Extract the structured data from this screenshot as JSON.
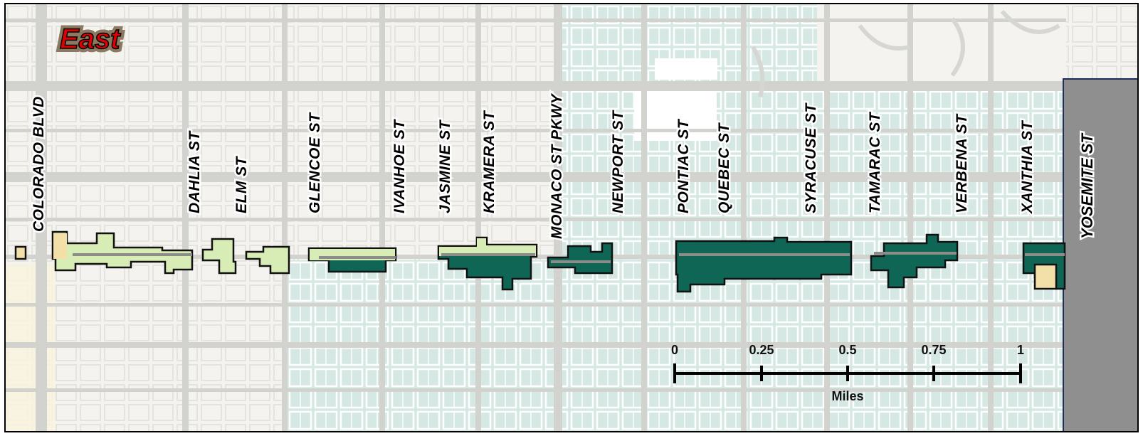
{
  "map": {
    "title": "East",
    "colors": {
      "background": "#f3f2ee",
      "teal_area": "#d5e8e4",
      "cream_area": "#faf3df",
      "road": "#d2d2cf",
      "light_green_fill": "#d8ecb6",
      "dark_green_fill": "#0f6655",
      "tan_fill": "#f3e0a8",
      "yosemite_strip": "#8f8f8f",
      "title_red": "#e00000"
    },
    "streets": [
      {
        "id": "colorado",
        "name": "COLORADO BLVD"
      },
      {
        "id": "dahlia",
        "name": "DAHLIA ST"
      },
      {
        "id": "elm",
        "name": "ELM ST"
      },
      {
        "id": "glencoe",
        "name": "GLENCOE ST"
      },
      {
        "id": "ivanhoe",
        "name": "IVANHOE ST"
      },
      {
        "id": "jasmine",
        "name": "JASMINE ST"
      },
      {
        "id": "kramera",
        "name": "KRAMERA ST"
      },
      {
        "id": "monaco",
        "name": "MONACO ST PKWY"
      },
      {
        "id": "newport",
        "name": "NEWPORT ST"
      },
      {
        "id": "pontiac",
        "name": "PONTIAC ST"
      },
      {
        "id": "quebec",
        "name": "QUEBEC ST"
      },
      {
        "id": "syracuse",
        "name": "SYRACUSE ST"
      },
      {
        "id": "tamarac",
        "name": "TAMARAC ST"
      },
      {
        "id": "verbena",
        "name": "VERBENA ST"
      },
      {
        "id": "xanthia",
        "name": "XANTHIA ST"
      }
    ],
    "boundary_street": "YOSEMITE ST",
    "scale_bar": {
      "ticks": [
        "0",
        "0.25",
        "0.5",
        "0.75",
        "1"
      ],
      "unit": "Miles"
    }
  }
}
